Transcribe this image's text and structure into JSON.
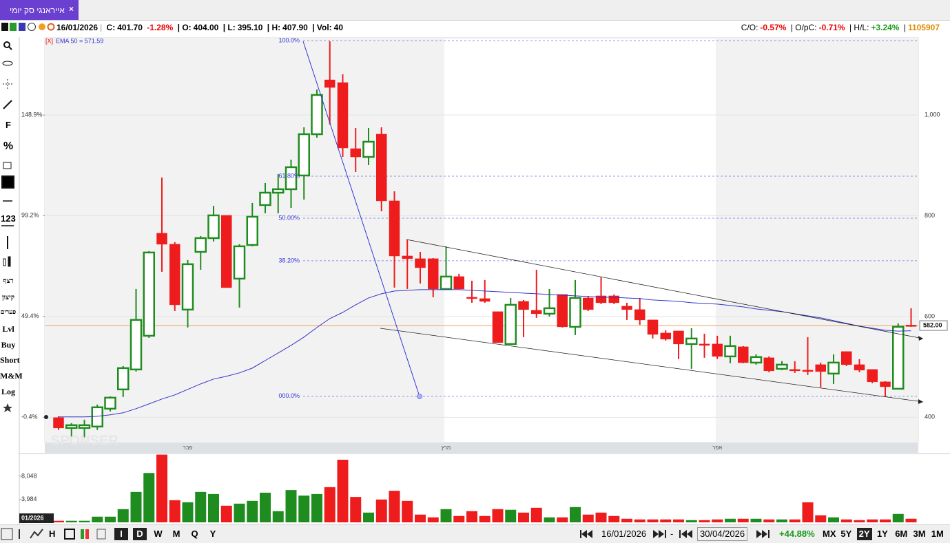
{
  "tab": {
    "title": "אייראנגי סק יומי",
    "close": "×"
  },
  "header": {
    "date": "16/01/2026",
    "c_label": "C:",
    "close": "401.70",
    "change": "-1.28%",
    "o_label": "| O:",
    "open": "404.00",
    "l_label": "| L:",
    "low": "395.10",
    "h_label": "| H:",
    "high": "407.90",
    "vol_label": "| Vol:",
    "vol": "40",
    "co_label": "C/O:",
    "co": "-0.57%",
    "opc_label": "| O/pC:",
    "opc": "-0.71%",
    "hl_label": "| H/L:",
    "hl": "+3.24%",
    "sep": "|",
    "id": "1105907"
  },
  "toolbar": [
    "F",
    "%",
    "123",
    "רצף",
    "קיצון",
    "פערים",
    "Lvl",
    "Buy",
    "Short",
    "M&M",
    "Log"
  ],
  "bottom_bar": {
    "h": "H",
    "cursor": "I",
    "intervals": [
      "D",
      "W",
      "M",
      "Q",
      "Y"
    ],
    "active_interval": "D",
    "from": "16/01/2026",
    "dash": "-",
    "to": "30/04/2026",
    "change": "+44.88%",
    "ranges": [
      "MX",
      "5Y",
      "2Y",
      "1Y",
      "6M",
      "3M",
      "1M"
    ],
    "active_range": "2Y"
  },
  "chart_data": {
    "type": "candlestick",
    "categories": [
      null,
      null,
      null,
      null,
      null,
      null,
      null,
      null,
      null,
      null,
      "פבר",
      null,
      null,
      null,
      null,
      null,
      null,
      null,
      null,
      null,
      null,
      null,
      null,
      null,
      null,
      null,
      null,
      null,
      null,
      null,
      "מרץ",
      null,
      null,
      null,
      null,
      null,
      null,
      null,
      null,
      null,
      null,
      null,
      null,
      null,
      null,
      null,
      null,
      null,
      null,
      null,
      null,
      "אפר",
      null,
      null,
      null,
      null,
      null,
      null,
      null,
      null,
      null,
      null,
      null,
      null,
      null,
      null,
      null
    ],
    "open": [
      399.3,
      378.8,
      378.8,
      381.6,
      417.1,
      455.3,
      494.9,
      561.8,
      765.2,
      743.4,
      613.7,
      728.3,
      755.6,
      800.7,
      675.1,
      742,
      821.2,
      845.7,
      852.6,
      879.9,
      961.8,
      1069.6,
      1064.2,
      933.1,
      916.7,
      961.8,
      829.4,
      720.1,
      714.7,
      714.7,
      654.6,
      679.2,
      638.2,
      635.5,
      609.6,
      545.4,
      630,
      612.3,
      605.5,
      643.7,
      579.5,
      636.8,
      640.9,
      640.9,
      620.5,
      613.7,
      593.2,
      567.2,
      571.3,
      545.4,
      545.4,
      545.4,
      520.8,
      539.9,
      508.5,
      518.1,
      496.2,
      494.9,
      493.5,
      504.4,
      486.7,
      530.4,
      504.4,
      494.9,
      470.3,
      456.6,
      583
    ],
    "high": [
      402,
      388.4,
      395.2,
      425.3,
      441.6,
      501.7,
      654.6,
      729.7,
      875.8,
      747.5,
      712,
      759.7,
      819.8,
      800.7,
      743.4,
      825.3,
      864.9,
      882.6,
      911.3,
      975.4,
      1050.5,
      1146.1,
      1080.6,
      974.1,
      974.1,
      975.4,
      848.5,
      752.9,
      728.3,
      716,
      739.3,
      684.7,
      671,
      672.4,
      609.6,
      636.8,
      632.8,
      692.8,
      654.6,
      643.7,
      672.4,
      640.9,
      677.8,
      643.7,
      627.3,
      636.8,
      593.2,
      572.7,
      571.3,
      576.8,
      565.9,
      561.8,
      561.8,
      541.3,
      524.9,
      520.8,
      511.3,
      511.3,
      559,
      508.5,
      524.9,
      530.4,
      515.4,
      494.9,
      471.6,
      586.4,
      616.4
    ],
    "low": [
      375,
      359.7,
      359.7,
      374.8,
      411.6,
      440.3,
      490.8,
      557.7,
      688.8,
      610.9,
      578.2,
      692.8,
      748.8,
      657.3,
      617.8,
      739.3,
      804.8,
      804.8,
      815.7,
      832.1,
      954.9,
      980.9,
      916.7,
      886.7,
      900.4,
      808.9,
      657.3,
      654.6,
      665.5,
      638.2,
      654.6,
      654.6,
      627.3,
      627.3,
      548.1,
      545.4,
      559,
      597.3,
      600,
      578.2,
      563.2,
      610.9,
      624.6,
      624.6,
      593.2,
      583.6,
      556.3,
      552.2,
      515.4,
      496.2,
      518.1,
      515.4,
      507.2,
      507.2,
      504.4,
      489.4,
      493.5,
      488.1,
      484,
      459.4,
      466.2,
      501.7,
      489.4,
      467.6,
      440.3,
      456.6,
      579.5
    ],
    "close": [
      378.8,
      384.3,
      384.3,
      419.8,
      438.9,
      497.6,
      593.2,
      727,
      743.4,
      623.2,
      703.8,
      755.6,
      800.7,
      657.3,
      739.3,
      798,
      845.7,
      852.6,
      896.3,
      961.8,
      1039.6,
      1054.6,
      934.5,
      916.7,
      946.8,
      829.4,
      720.1,
      714.7,
      696.9,
      654.6,
      679.2,
      654.6,
      635.5,
      630,
      548.1,
      623.2,
      613.7,
      605.5,
      616.4,
      579.5,
      636.8,
      613.7,
      627.3,
      627.3,
      613.7,
      593.2,
      564.5,
      555,
      545.4,
      556.3,
      542.7,
      520.8,
      541.3,
      508.5,
      519.5,
      492.2,
      504.4,
      493.5,
      490.8,
      490.8,
      508.5,
      504.4,
      493.5,
      470.3,
      460.7,
      579.5,
      582
    ],
    "up_color": "#1e8c1e",
    "down_color": "#ee1c1c",
    "ylim": [
      354,
      1153
    ],
    "yticks": [
      400,
      600,
      800,
      {
        "value": 1000,
        "label": "1,000"
      }
    ],
    "y2lim": [
      -11.87,
      187.03
    ],
    "y2ticks": [
      {
        "value": -0.4,
        "label": "-0.4%"
      },
      {
        "value": 49.4,
        "label": "49.4%"
      },
      {
        "value": 99.2,
        "label": "99.2%"
      },
      {
        "value": 148.9,
        "label": "148.9%"
      }
    ],
    "grid": true,
    "ema": {
      "legend_close": "[X]",
      "name": "EMA 50 = 571.59",
      "color": "#3434c8",
      "values": [
        400.7,
        400.7,
        400.7,
        402.0,
        404.8,
        408.9,
        417.1,
        426.6,
        436.2,
        444.4,
        455.3,
        466.2,
        475.8,
        481.3,
        488.1,
        497.6,
        512.6,
        527.6,
        542.7,
        559.1,
        578.2,
        595.9,
        608.2,
        623.2,
        636.8,
        645.1,
        650.5,
        651.9,
        653.3,
        653.3,
        653.3,
        653.3,
        651.9,
        650.5,
        649.2,
        647.8,
        646.4,
        645.1,
        643.7,
        642.3,
        641,
        639.6,
        638.2,
        638.2,
        636.8,
        635.5,
        632.8,
        631.4,
        630,
        627.3,
        625.9,
        624.6,
        621.9,
        619.1,
        615,
        612.3,
        609.6,
        605.5,
        601.4,
        597.3,
        591.8,
        586.4,
        580.9,
        576.8,
        572.7,
        571.0,
        571.6
      ]
    },
    "fibonacci": {
      "color": "#3434d8",
      "levels": [
        {
          "value": 1147.5,
          "label": "100.0%"
        },
        {
          "value": 878.5,
          "label": "61.80%"
        },
        {
          "value": 795.2,
          "label": "50.00%"
        },
        {
          "value": 710.6,
          "label": "38.20%"
        },
        {
          "value": 441.6,
          "label": "000.0%"
        }
      ]
    },
    "last_price": {
      "value": 582,
      "label": "582.00",
      "color": "#e8a060"
    },
    "watermark": "SPONSER",
    "cursor_label": "01/2026",
    "volume": {
      "ylim": [
        0,
        11870
      ],
      "yticks": [
        {
          "value": 3984,
          "label": "3,984"
        },
        {
          "value": 8048,
          "label": "8,048"
        }
      ],
      "values": [
        275,
        275,
        275,
        990,
        990,
        2300,
        5300,
        8600,
        11800,
        3860,
        3500,
        5300,
        4930,
        2900,
        3260,
        3740,
        5170,
        1950,
        5620,
        4660,
        4930,
        6130,
        10910,
        4420,
        1700,
        3980,
        5500,
        3740,
        1350,
        870,
        2300,
        1110,
        1950,
        1110,
        2300,
        2190,
        1700,
        2540,
        870,
        870,
        2660,
        1350,
        1700,
        1110,
        630,
        510,
        510,
        510,
        510,
        390,
        390,
        510,
        630,
        630,
        630,
        510,
        510,
        510,
        3500,
        1230,
        870,
        510,
        390,
        510,
        510,
        1470,
        630
      ]
    }
  }
}
